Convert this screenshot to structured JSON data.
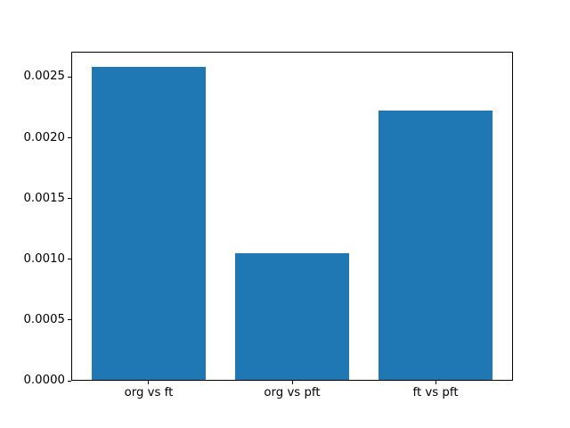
{
  "chart_data": {
    "type": "bar",
    "categories": [
      "org vs ft",
      "org vs pft",
      "ft vs pft"
    ],
    "values": [
      0.00258,
      0.00104,
      0.00222
    ],
    "title": "",
    "xlabel": "",
    "ylabel": "",
    "ylim": [
      0,
      0.002709
    ],
    "yticks": [
      0,
      0.0005,
      0.001,
      0.0015,
      0.002,
      0.0025
    ],
    "ytick_labels": [
      "0.0000",
      "0.0005",
      "0.0010",
      "0.0015",
      "0.0020",
      "0.0025"
    ],
    "bar_color": "#1f77b4",
    "bar_width_fraction": 0.8,
    "x_margin": 0.54,
    "grid": false,
    "legend": null,
    "background_color": "#ffffff",
    "spine_color": "#000000",
    "text_color": "#000000"
  }
}
